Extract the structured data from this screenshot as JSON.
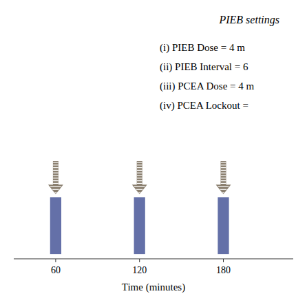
{
  "chart_data": {
    "type": "bar",
    "title": "PIEB settings",
    "annotations": [
      "(i) PIEB Dose = 4 m",
      "(ii) PIEB Interval = 6",
      "(iii) PCEA Dose = 4 m",
      "(iv) PCEA Lockout ="
    ],
    "xlabel": "Time (minutes)",
    "x": [
      60,
      120,
      180
    ],
    "values": [
      0.6,
      0.6,
      0.6
    ],
    "color": "#6470a8",
    "arrows": {
      "y_start": [
        0.98,
        0.98,
        0.98
      ],
      "y_end": [
        0.63,
        0.63,
        0.63
      ],
      "color": "#8B8070",
      "hatch_color": "#ffffff"
    },
    "xlim": [
      30,
      230
    ],
    "xticks": [
      60,
      120,
      180
    ],
    "ylim": [
      -0.05,
      1.3
    ],
    "tick_labels": "x",
    "grid": false
  }
}
